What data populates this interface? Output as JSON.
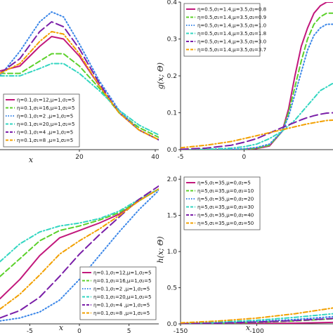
{
  "chart_data": [
    {
      "type": "line",
      "position": "top-left",
      "xlabel": "x",
      "ylabel": "",
      "xlim": [
        0,
        40
      ],
      "ylim": [
        0,
        0.06
      ],
      "x_ticks": [
        "20",
        "40"
      ],
      "y_ticks": [],
      "legend_position": "bottom-left",
      "series": [
        {
          "name": "η=0.1,σ₁=12,μ=1,σ₂=5",
          "color": "#c2187c",
          "dash": "solid",
          "x": [
            0,
            5,
            10,
            13,
            16,
            20,
            25,
            30,
            35,
            40
          ],
          "y": [
            0.032,
            0.034,
            0.042,
            0.046,
            0.045,
            0.038,
            0.026,
            0.015,
            0.008,
            0.004
          ]
        },
        {
          "name": "η=0.1,σ₁=16,μ=1,σ₂=5",
          "color": "#5cd12b",
          "dash": "dash",
          "x": [
            0,
            5,
            10,
            13,
            16,
            20,
            25,
            30,
            35,
            40
          ],
          "y": [
            0.031,
            0.031,
            0.036,
            0.039,
            0.039,
            0.034,
            0.025,
            0.015,
            0.009,
            0.005
          ]
        },
        {
          "name": "η=0.1,σ₁=2 ,μ=1,σ₂=5",
          "color": "#3a86e8",
          "dash": "dot",
          "x": [
            0,
            5,
            10,
            13,
            16,
            20,
            25,
            30,
            35,
            40
          ],
          "y": [
            0.03,
            0.04,
            0.052,
            0.056,
            0.054,
            0.043,
            0.028,
            0.016,
            0.008,
            0.004
          ]
        },
        {
          "name": "η=0.1,σ₁=20,μ=1,σ₂=5",
          "color": "#33d6c1",
          "dash": "dashdot",
          "x": [
            0,
            5,
            10,
            13,
            16,
            20,
            25,
            30,
            35,
            40
          ],
          "y": [
            0.03,
            0.03,
            0.033,
            0.035,
            0.035,
            0.031,
            0.024,
            0.016,
            0.01,
            0.006
          ]
        },
        {
          "name": "η=0.1,σ₁=4 ,μ=1,σ₂=5",
          "color": "#7a1fa8",
          "dash": "longdash",
          "x": [
            0,
            5,
            10,
            13,
            16,
            20,
            25,
            30,
            35,
            40
          ],
          "y": [
            0.031,
            0.037,
            0.048,
            0.052,
            0.05,
            0.041,
            0.027,
            0.015,
            0.008,
            0.004
          ]
        },
        {
          "name": "η=0.1,σ₁=8 ,μ=1,σ₂=5",
          "color": "#f2a000",
          "dash": "dashdot",
          "x": [
            0,
            5,
            10,
            13,
            16,
            20,
            25,
            30,
            35,
            40
          ],
          "y": [
            0.031,
            0.035,
            0.044,
            0.048,
            0.047,
            0.039,
            0.026,
            0.015,
            0.008,
            0.004
          ]
        }
      ]
    },
    {
      "type": "line",
      "position": "top-right",
      "xlabel": "",
      "ylabel": "g(x; Θ)",
      "xlim": [
        -5,
        7
      ],
      "ylim": [
        0,
        0.4
      ],
      "x_ticks": [
        "-5",
        "0"
      ],
      "x_tick_values": [
        -5,
        0
      ],
      "y_ticks": [
        "0.0",
        "0.1",
        "0.2",
        "0.3",
        "0.4"
      ],
      "y_tick_values": [
        0,
        0.1,
        0.2,
        0.3,
        0.4
      ],
      "legend_position": "top-left",
      "series": [
        {
          "name": "η=0.5,σ₁=1.4,μ=3.5,σ₂=0.8",
          "color": "#c2187c",
          "dash": "solid",
          "x": [
            -5,
            -3,
            -1,
            0,
            1,
            2,
            3,
            3.5,
            4,
            4.5,
            5,
            5.5,
            6,
            6.5,
            7
          ],
          "y": [
            0,
            0,
            0,
            0.001,
            0.003,
            0.01,
            0.05,
            0.11,
            0.2,
            0.28,
            0.33,
            0.37,
            0.39,
            0.4,
            0.4
          ]
        },
        {
          "name": "η=0.5,σ₁=1.4,μ=3.5,σ₂=0.9",
          "color": "#5cd12b",
          "dash": "dash",
          "x": [
            -5,
            -3,
            -1,
            0,
            1,
            2,
            3,
            3.5,
            4,
            4.5,
            5,
            5.5,
            6,
            6.5,
            7
          ],
          "y": [
            0,
            0,
            0,
            0.001,
            0.004,
            0.012,
            0.05,
            0.1,
            0.17,
            0.24,
            0.3,
            0.34,
            0.36,
            0.37,
            0.37
          ]
        },
        {
          "name": "η=0.5,σ₁=1.4,μ=3.5,σ₂=1.0",
          "color": "#3a86e8",
          "dash": "dot",
          "x": [
            -5,
            -3,
            -1,
            0,
            1,
            2,
            3,
            3.5,
            4,
            4.5,
            5,
            5.5,
            6,
            6.5,
            7
          ],
          "y": [
            0,
            0,
            0.001,
            0.002,
            0.006,
            0.015,
            0.05,
            0.09,
            0.15,
            0.21,
            0.27,
            0.31,
            0.33,
            0.34,
            0.34
          ]
        },
        {
          "name": "η=0.5,σ₁=1.4,μ=3.5,σ₂=1.8",
          "color": "#33d6c1",
          "dash": "dashdot",
          "x": [
            -5,
            -3,
            -1,
            0,
            1,
            2,
            3,
            3.5,
            4,
            4.5,
            5,
            5.5,
            6,
            6.5,
            7
          ],
          "y": [
            0,
            0.001,
            0.004,
            0.008,
            0.015,
            0.03,
            0.05,
            0.065,
            0.08,
            0.1,
            0.12,
            0.14,
            0.16,
            0.17,
            0.18
          ]
        },
        {
          "name": "η=0.5,σ₁=1.4,μ=3.5,σ₂=3.0",
          "color": "#7a1fa8",
          "dash": "longdash",
          "x": [
            -5,
            -3,
            -1,
            0,
            1,
            2,
            3,
            3.5,
            4,
            4.5,
            5,
            5.5,
            6,
            6.5,
            7
          ],
          "y": [
            0.001,
            0.004,
            0.012,
            0.02,
            0.03,
            0.045,
            0.06,
            0.067,
            0.074,
            0.081,
            0.087,
            0.092,
            0.096,
            0.099,
            0.1
          ]
        },
        {
          "name": "η=0.5,σ₁=1.4,μ=3.5,σ₂=3.7",
          "color": "#f2a000",
          "dash": "dashdot",
          "x": [
            -5,
            -3,
            -1,
            0,
            1,
            2,
            3,
            3.5,
            4,
            4.5,
            5,
            5.5,
            6,
            6.5,
            7
          ],
          "y": [
            0.005,
            0.012,
            0.022,
            0.03,
            0.038,
            0.046,
            0.054,
            0.058,
            0.062,
            0.066,
            0.07,
            0.073,
            0.076,
            0.079,
            0.08
          ]
        }
      ]
    },
    {
      "type": "line",
      "position": "bottom-left",
      "xlabel": "x",
      "ylabel": "",
      "xlim": [
        -8,
        8
      ],
      "ylim": [
        0,
        1
      ],
      "x_ticks": [
        "-5",
        "0",
        "5"
      ],
      "x_tick_values": [
        -5,
        0,
        5
      ],
      "y_ticks": [],
      "legend_position": "bottom-right",
      "series": [
        {
          "name": "η=0.1,σ₁=12,μ=1,σ₂=5",
          "color": "#c2187c",
          "dash": "solid",
          "x": [
            -8,
            -6,
            -4,
            -2,
            0,
            2,
            4,
            6,
            8
          ],
          "y": [
            0.17,
            0.3,
            0.46,
            0.58,
            0.63,
            0.68,
            0.74,
            0.83,
            0.91
          ]
        },
        {
          "name": "η=0.1,σ₁=16,μ=1,σ₂=5",
          "color": "#5cd12b",
          "dash": "dash",
          "x": [
            -8,
            -6,
            -4,
            -2,
            0,
            2,
            4,
            6,
            8
          ],
          "y": [
            0.32,
            0.44,
            0.56,
            0.63,
            0.66,
            0.7,
            0.75,
            0.83,
            0.91
          ]
        },
        {
          "name": "η=0.1,σ₁=2 ,μ=1,σ₂=5",
          "color": "#3a86e8",
          "dash": "dot",
          "x": [
            -8,
            -6,
            -4,
            -2,
            0,
            2,
            4,
            6,
            8
          ],
          "y": [
            0.02,
            0.04,
            0.08,
            0.16,
            0.3,
            0.46,
            0.62,
            0.77,
            0.9
          ]
        },
        {
          "name": "η=0.1,σ₁=20,μ=1,σ₂=5",
          "color": "#33d6c1",
          "dash": "dashdot",
          "x": [
            -8,
            -6,
            -4,
            -2,
            0,
            2,
            4,
            6,
            8
          ],
          "y": [
            0.42,
            0.54,
            0.62,
            0.66,
            0.68,
            0.71,
            0.76,
            0.84,
            0.91
          ]
        },
        {
          "name": "η=0.1,σ₁=4 ,μ=1,σ₂=5",
          "color": "#7a1fa8",
          "dash": "longdash",
          "x": [
            -8,
            -6,
            -4,
            -2,
            0,
            2,
            4,
            6,
            8
          ],
          "y": [
            0.04,
            0.09,
            0.18,
            0.32,
            0.47,
            0.6,
            0.72,
            0.84,
            0.93
          ]
        },
        {
          "name": "η=0.1,σ₁=8 ,μ=1,σ₂=5",
          "color": "#f2a000",
          "dash": "dashdot",
          "x": [
            -8,
            -6,
            -4,
            -2,
            0,
            2,
            4,
            6,
            8
          ],
          "y": [
            0.1,
            0.2,
            0.33,
            0.47,
            0.56,
            0.64,
            0.73,
            0.83,
            0.91
          ]
        }
      ]
    },
    {
      "type": "line",
      "position": "bottom-right",
      "xlabel": "x",
      "ylabel": "h(x; Θ)",
      "xlim": [
        -150,
        -50
      ],
      "ylim": [
        0,
        2.05
      ],
      "x_ticks": [
        "-150",
        "-100"
      ],
      "x_tick_values": [
        -150,
        -100
      ],
      "y_ticks": [
        "0.0",
        "0.5",
        "1.0",
        "1.5",
        "2.0"
      ],
      "y_tick_values": [
        0,
        0.5,
        1.0,
        1.5,
        2.0
      ],
      "legend_position": "top-left",
      "series": [
        {
          "name": "η=5,σ₁=35,μ=0,σ₂=5",
          "color": "#c2187c",
          "dash": "solid",
          "x": [
            -150,
            -125,
            -100,
            -75,
            -50
          ],
          "y": [
            0,
            0.002,
            0.005,
            0.01,
            0.02
          ]
        },
        {
          "name": "η=5,σ₁=35,μ=0,σ₂=10",
          "color": "#5cd12b",
          "dash": "dash",
          "x": [
            -150,
            -125,
            -100,
            -75,
            -50
          ],
          "y": [
            0.002,
            0.008,
            0.02,
            0.04,
            0.07
          ]
        },
        {
          "name": "η=5,σ₁=35,μ=0,σ₂=20",
          "color": "#3a86e8",
          "dash": "dot",
          "x": [
            -150,
            -125,
            -100,
            -75,
            -50
          ],
          "y": [
            0.005,
            0.015,
            0.035,
            0.06,
            0.1
          ]
        },
        {
          "name": "η=5,σ₁=35,μ=0,σ₂=30",
          "color": "#33d6c1",
          "dash": "dashdot",
          "x": [
            -150,
            -125,
            -100,
            -75,
            -50
          ],
          "y": [
            0.01,
            0.025,
            0.05,
            0.09,
            0.14
          ]
        },
        {
          "name": "η=5,σ₁=35,μ=0,σ₂=40",
          "color": "#7a1fa8",
          "dash": "longdash",
          "x": [
            -150,
            -125,
            -100,
            -75,
            -50
          ],
          "y": [
            0.003,
            0.01,
            0.025,
            0.045,
            0.075
          ]
        },
        {
          "name": "η=5,σ₁=35,μ=0,σ₂=50",
          "color": "#f2a000",
          "dash": "dashdot",
          "x": [
            -150,
            -125,
            -100,
            -75,
            -50
          ],
          "y": [
            0.015,
            0.04,
            0.08,
            0.14,
            0.22
          ]
        }
      ]
    }
  ]
}
